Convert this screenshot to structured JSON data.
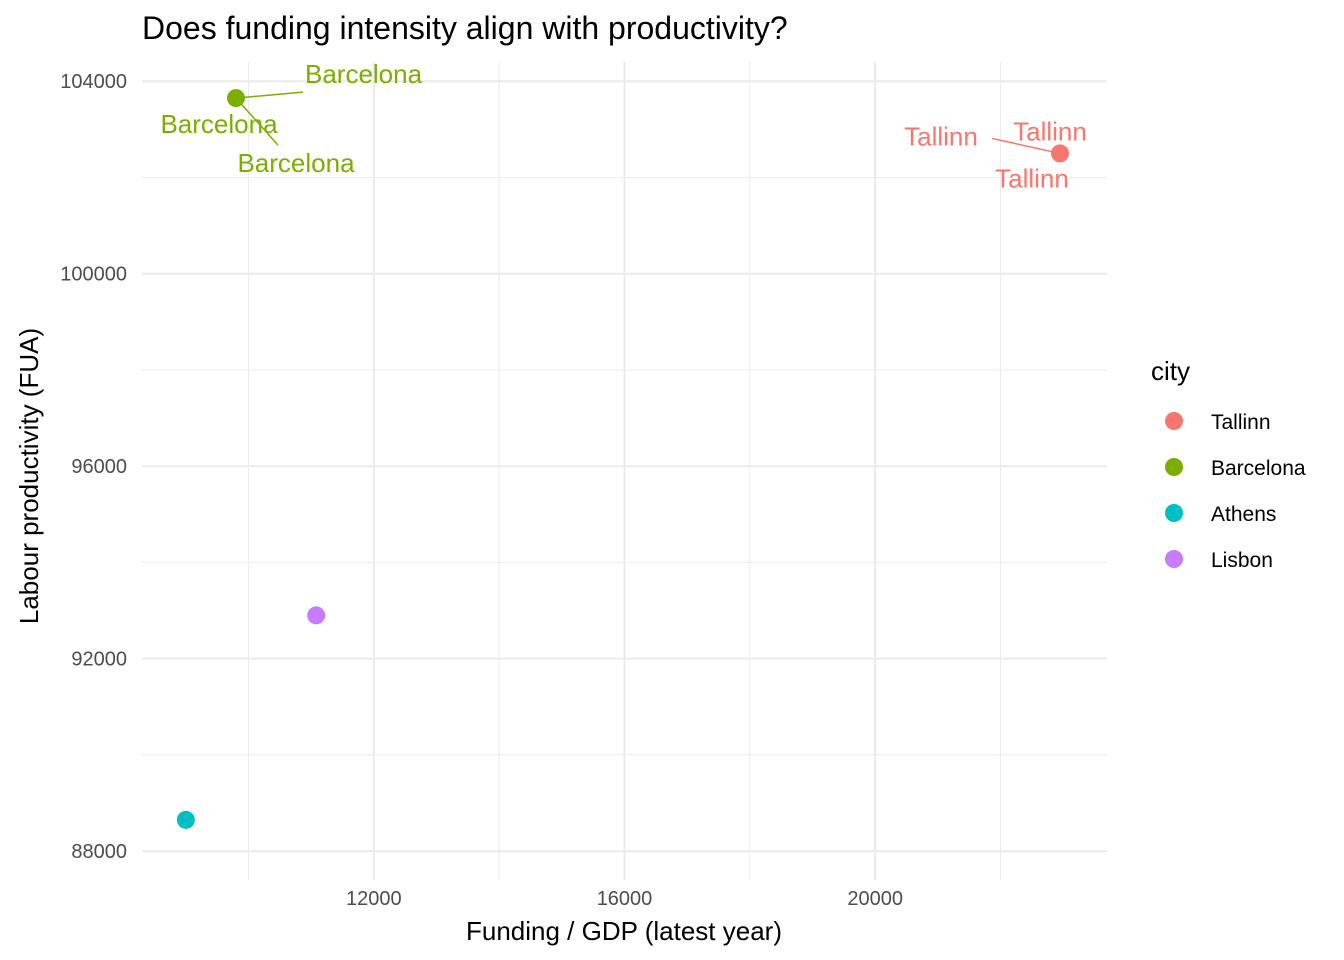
{
  "chart_data": {
    "type": "scatter",
    "title": "Does funding intensity align with productivity?",
    "xlabel": "Funding / GDP (latest year)",
    "ylabel": "Labour productivity (FUA)",
    "xlim": [
      8300,
      23700
    ],
    "ylim": [
      87400,
      104400
    ],
    "x_ticks": [
      12000,
      16000,
      20000
    ],
    "y_ticks": [
      88000,
      92000,
      96000,
      100000,
      104000
    ],
    "x_tick_labels": [
      "12000",
      "16000",
      "20000"
    ],
    "y_tick_labels": [
      "88000",
      "92000",
      "96000",
      "100000",
      "104000"
    ],
    "grid": true,
    "legend": {
      "title": "city",
      "position": "right",
      "entries": [
        "Tallinn",
        "Barcelona",
        "Athens",
        "Lisbon"
      ]
    },
    "colors": {
      "Tallinn": "#F8766D",
      "Barcelona": "#7CAE00",
      "Athens": "#00BFC4",
      "Lisbon": "#C77CFF"
    },
    "points": [
      {
        "city": "Tallinn",
        "x": 22950,
        "y": 102500
      },
      {
        "city": "Barcelona",
        "x": 9800,
        "y": 103650
      },
      {
        "city": "Athens",
        "x": 9000,
        "y": 88650
      },
      {
        "city": "Lisbon",
        "x": 11080,
        "y": 92900
      }
    ],
    "annotations": [
      {
        "text": "Barcelona",
        "city": "Barcelona"
      },
      {
        "text": "Barcelona",
        "city": "Barcelona"
      },
      {
        "text": "Barcelona",
        "city": "Barcelona"
      },
      {
        "text": "Tallinn",
        "city": "Tallinn"
      },
      {
        "text": "Tallinn",
        "city": "Tallinn"
      },
      {
        "text": "Tallinn",
        "city": "Tallinn"
      }
    ]
  }
}
